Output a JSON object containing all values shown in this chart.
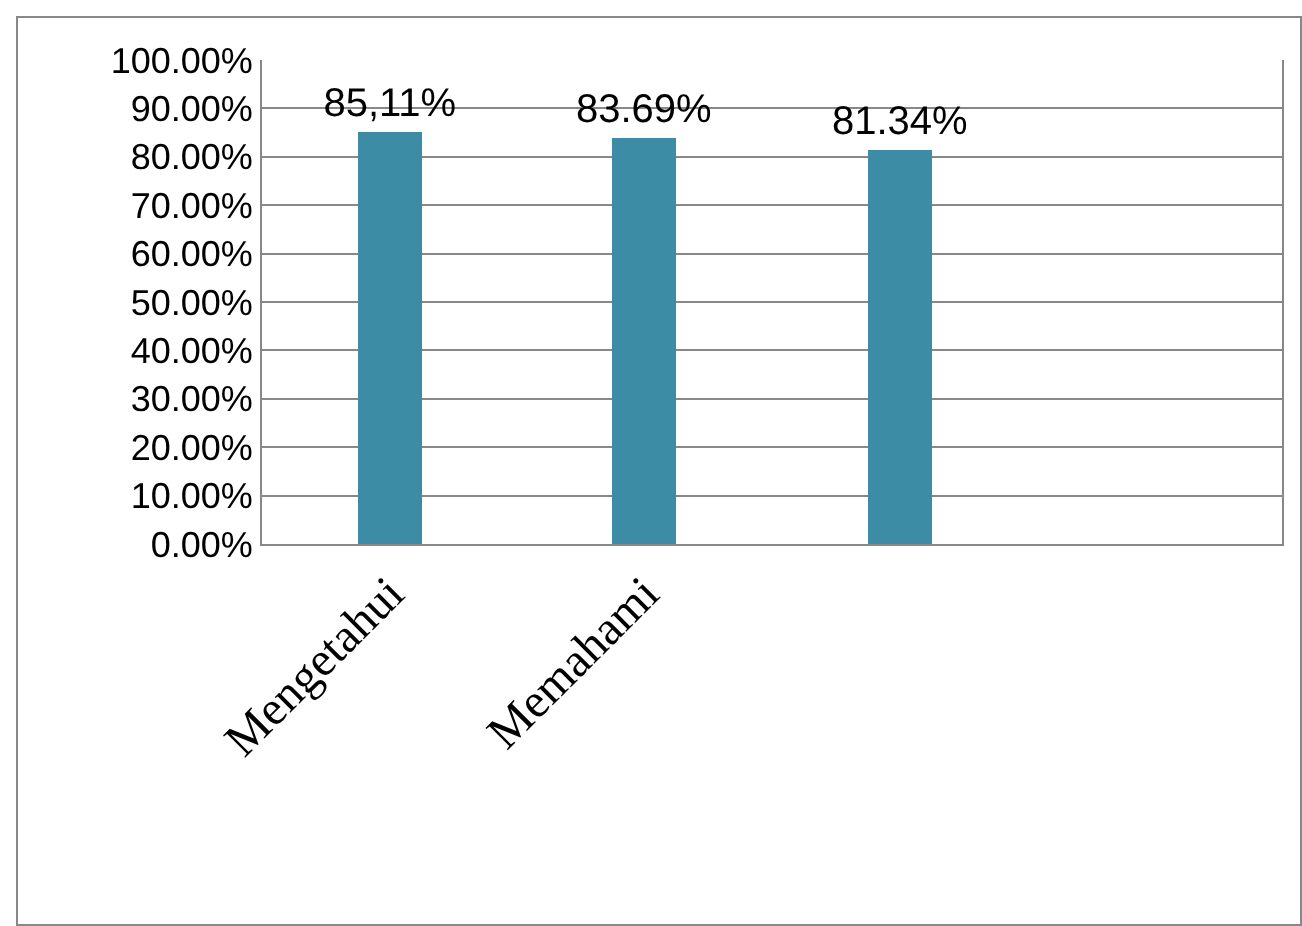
{
  "chart_data": {
    "type": "bar",
    "categories": [
      "Mengetahui",
      "Memahami",
      null,
      null
    ],
    "values": [
      85.11,
      83.69,
      81.34,
      null
    ],
    "color": "#3c8ca5",
    "value_labels": [
      "85,11%",
      "83.69%",
      "81.34%",
      null
    ],
    "ylim": [
      0,
      100
    ],
    "yticks": [
      {
        "value": 0,
        "label": "0.00%"
      },
      {
        "value": 10,
        "label": "10.00%"
      },
      {
        "value": 20,
        "label": "20.00%"
      },
      {
        "value": 30,
        "label": "30.00%"
      },
      {
        "value": 40,
        "label": "40.00%"
      },
      {
        "value": 50,
        "label": "50.00%"
      },
      {
        "value": 60,
        "label": "60.00%"
      },
      {
        "value": 70,
        "label": "70.00%"
      },
      {
        "value": 80,
        "label": "80.00%"
      },
      {
        "value": 90,
        "label": "90.00%"
      },
      {
        "value": 100,
        "label": "100.00%"
      }
    ],
    "grid": "y"
  }
}
